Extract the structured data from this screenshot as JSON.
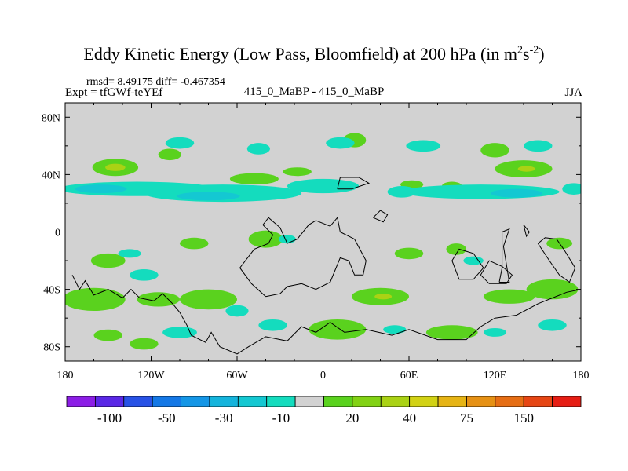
{
  "title": {
    "main": "Eddy Kinetic Energy (Low Pass, Bloomfield) at 200 hPa (in m",
    "sup1": "2",
    "mid": "s",
    "sup2": "-2",
    "end": ")"
  },
  "stats": "rmsd= 8.49175 diff= -0.467354",
  "expt": "Expt = tfGWf-teYEf",
  "diff_label": "415_0_MaBP - 415_0_MaBP",
  "season": "JJA",
  "chart_data": {
    "type": "heatmap",
    "title": "Eddy Kinetic Energy (Low Pass, Bloomfield) at 200 hPa (in m2s-2)",
    "projection": "cylindrical equidistant",
    "xlim": [
      -180,
      180
    ],
    "ylim": [
      -90,
      90
    ],
    "x_ticks": [
      {
        "value": -180,
        "label": "180"
      },
      {
        "value": -120,
        "label": "120W"
      },
      {
        "value": -60,
        "label": "60W"
      },
      {
        "value": 0,
        "label": "0"
      },
      {
        "value": 60,
        "label": "60E"
      },
      {
        "value": 120,
        "label": "120E"
      },
      {
        "value": 180,
        "label": "180"
      }
    ],
    "y_ticks": [
      {
        "value": 80,
        "label": "80N"
      },
      {
        "value": 40,
        "label": "40N"
      },
      {
        "value": 0,
        "label": "0"
      },
      {
        "value": -40,
        "label": "40S"
      },
      {
        "value": -80,
        "label": "80S"
      }
    ],
    "colorbar": {
      "colors": [
        "#8c1ee6",
        "#5a28e6",
        "#2852e6",
        "#1478e6",
        "#1496e6",
        "#14b4dc",
        "#14c8d2",
        "#14dcbe",
        "#d2d2d2",
        "#5ad21e",
        "#82d214",
        "#aad214",
        "#d2d214",
        "#e6b414",
        "#e69114",
        "#e66e14",
        "#e64614",
        "#e61e14"
      ],
      "labels": [
        {
          "text": "-100",
          "boundary": 1.5
        },
        {
          "text": "-50",
          "boundary": 3.5
        },
        {
          "text": "-30",
          "boundary": 5.5
        },
        {
          "text": "-10",
          "boundary": 7.5
        },
        {
          "text": "20",
          "boundary": 10
        },
        {
          "text": "40",
          "boundary": 12
        },
        {
          "text": "75",
          "boundary": 14
        },
        {
          "text": "150",
          "boundary": 16
        }
      ]
    },
    "anomaly_regions": [
      {
        "color_index": 9,
        "lon": -145,
        "lat": 45,
        "dlon": 16,
        "dlat": 6
      },
      {
        "color_index": 11,
        "lon": -145,
        "lat": 45,
        "dlon": 7,
        "dlat": 2.5
      },
      {
        "color_index": 9,
        "lon": -107,
        "lat": 54,
        "dlon": 8,
        "dlat": 4
      },
      {
        "color_index": 9,
        "lon": -48,
        "lat": 37,
        "dlon": 17,
        "dlat": 4
      },
      {
        "color_index": 9,
        "lon": -18,
        "lat": 42,
        "dlon": 10,
        "dlat": 3
      },
      {
        "color_index": 9,
        "lon": 62,
        "lat": 33,
        "dlon": 8,
        "dlat": 3
      },
      {
        "color_index": 9,
        "lon": 90,
        "lat": 32,
        "dlon": 7,
        "dlat": 3
      },
      {
        "color_index": 9,
        "lon": 140,
        "lat": 44,
        "dlon": 20,
        "dlat": 6
      },
      {
        "color_index": 11,
        "lon": 142,
        "lat": 44,
        "dlon": 6,
        "dlat": 2
      },
      {
        "color_index": 9,
        "lon": 22,
        "lat": 64,
        "dlon": 8,
        "dlat": 5
      },
      {
        "color_index": 9,
        "lon": 120,
        "lat": 57,
        "dlon": 10,
        "dlat": 5
      },
      {
        "color_index": 9,
        "lon": -40,
        "lat": -5,
        "dlon": 12,
        "dlat": 6
      },
      {
        "color_index": 9,
        "lon": -150,
        "lat": -20,
        "dlon": 12,
        "dlat": 5
      },
      {
        "color_index": 9,
        "lon": -90,
        "lat": -8,
        "dlon": 10,
        "dlat": 4
      },
      {
        "color_index": 9,
        "lon": 60,
        "lat": -15,
        "dlon": 10,
        "dlat": 4
      },
      {
        "color_index": 9,
        "lon": 93,
        "lat": -12,
        "dlon": 7,
        "dlat": 4
      },
      {
        "color_index": 9,
        "lon": 165,
        "lat": -8,
        "dlon": 9,
        "dlat": 4
      },
      {
        "color_index": 9,
        "lon": -160,
        "lat": -47,
        "dlon": 22,
        "dlat": 8
      },
      {
        "color_index": 9,
        "lon": -80,
        "lat": -47,
        "dlon": 20,
        "dlat": 7
      },
      {
        "color_index": 11,
        "lon": -115,
        "lat": -47,
        "dlon": 7,
        "dlat": 2
      },
      {
        "color_index": 9,
        "lon": -115,
        "lat": -47,
        "dlon": 15,
        "dlat": 5
      },
      {
        "color_index": 9,
        "lon": 40,
        "lat": -45,
        "dlon": 20,
        "dlat": 6
      },
      {
        "color_index": 11,
        "lon": 42,
        "lat": -45,
        "dlon": 6,
        "dlat": 2
      },
      {
        "color_index": 9,
        "lon": 130,
        "lat": -45,
        "dlon": 18,
        "dlat": 5
      },
      {
        "color_index": 9,
        "lon": 160,
        "lat": -40,
        "dlon": 18,
        "dlat": 7
      },
      {
        "color_index": 9,
        "lon": 10,
        "lat": -68,
        "dlon": 20,
        "dlat": 7
      },
      {
        "color_index": 9,
        "lon": 90,
        "lat": -70,
        "dlon": 18,
        "dlat": 5
      },
      {
        "color_index": 9,
        "lon": -125,
        "lat": -78,
        "dlon": 10,
        "dlat": 4
      },
      {
        "color_index": 9,
        "lon": -150,
        "lat": -72,
        "dlon": 10,
        "dlat": 4
      },
      {
        "color_index": 7,
        "lon": -100,
        "lat": 62,
        "dlon": 10,
        "dlat": 4
      },
      {
        "color_index": 7,
        "lon": -45,
        "lat": 58,
        "dlon": 8,
        "dlat": 4
      },
      {
        "color_index": 7,
        "lon": 12,
        "lat": 62,
        "dlon": 10,
        "dlat": 4
      },
      {
        "color_index": 7,
        "lon": 70,
        "lat": 60,
        "dlon": 12,
        "dlat": 4
      },
      {
        "color_index": 7,
        "lon": 150,
        "lat": 60,
        "dlon": 10,
        "dlat": 4
      },
      {
        "color_index": 7,
        "lon": -130,
        "lat": 30,
        "dlon": 55,
        "dlat": 5
      },
      {
        "color_index": 7,
        "lon": -70,
        "lat": 27,
        "dlon": 55,
        "dlat": 6
      },
      {
        "color_index": 7,
        "lon": 0,
        "lat": 32,
        "dlon": 25,
        "dlat": 5
      },
      {
        "color_index": 7,
        "lon": 110,
        "lat": 28,
        "dlon": 55,
        "dlat": 5
      },
      {
        "color_index": 7,
        "lon": 175,
        "lat": 30,
        "dlon": 8,
        "dlat": 4
      },
      {
        "color_index": 6,
        "lon": -155,
        "lat": 30,
        "dlon": 18,
        "dlat": 3
      },
      {
        "color_index": 6,
        "lon": -80,
        "lat": 25,
        "dlon": 22,
        "dlat": 3
      },
      {
        "color_index": 6,
        "lon": 135,
        "lat": 27,
        "dlon": 18,
        "dlat": 3
      },
      {
        "color_index": 7,
        "lon": 55,
        "lat": 28,
        "dlon": 10,
        "dlat": 4
      },
      {
        "color_index": 7,
        "lon": -125,
        "lat": -30,
        "dlon": 10,
        "dlat": 4
      },
      {
        "color_index": 7,
        "lon": -60,
        "lat": -55,
        "dlon": 8,
        "dlat": 4
      },
      {
        "color_index": 7,
        "lon": -100,
        "lat": -70,
        "dlon": 12,
        "dlat": 4
      },
      {
        "color_index": 7,
        "lon": -35,
        "lat": -65,
        "dlon": 10,
        "dlat": 4
      },
      {
        "color_index": 7,
        "lon": 105,
        "lat": -20,
        "dlon": 7,
        "dlat": 3
      },
      {
        "color_index": 7,
        "lon": 120,
        "lat": -70,
        "dlon": 8,
        "dlat": 3
      },
      {
        "color_index": 7,
        "lon": 160,
        "lat": -65,
        "dlon": 10,
        "dlat": 4
      },
      {
        "color_index": 7,
        "lon": 50,
        "lat": -68,
        "dlon": 8,
        "dlat": 3
      },
      {
        "color_index": 7,
        "lon": -25,
        "lat": -5,
        "dlon": 6,
        "dlat": 3
      },
      {
        "color_index": 7,
        "lon": -135,
        "lat": -15,
        "dlon": 8,
        "dlat": 3
      }
    ],
    "coastlines": [
      [
        [
          -175,
          -30
        ],
        [
          -170,
          -40
        ],
        [
          -166,
          -34
        ],
        [
          -160,
          -44
        ],
        [
          -150,
          -40
        ],
        [
          -140,
          -46
        ],
        [
          -134,
          -40
        ],
        [
          -128,
          -46
        ],
        [
          -118,
          -48
        ],
        [
          -112,
          -43
        ],
        [
          -105,
          -50
        ],
        [
          -100,
          -56
        ],
        [
          -95,
          -65
        ],
        [
          -92,
          -72
        ],
        [
          -82,
          -77
        ],
        [
          -78,
          -70
        ],
        [
          -72,
          -80
        ],
        [
          -60,
          -85
        ],
        [
          -52,
          -80
        ],
        [
          -40,
          -73
        ],
        [
          -25,
          -76
        ],
        [
          -15,
          -66
        ],
        [
          -5,
          -70
        ],
        [
          5,
          -63
        ],
        [
          15,
          -70
        ],
        [
          30,
          -68
        ],
        [
          48,
          -72
        ],
        [
          60,
          -68
        ],
        [
          80,
          -75
        ],
        [
          100,
          -75
        ],
        [
          110,
          -66
        ],
        [
          120,
          -60
        ],
        [
          135,
          -58
        ],
        [
          150,
          -50
        ],
        [
          160,
          -46
        ],
        [
          170,
          -42
        ],
        [
          180,
          -40
        ]
      ],
      [
        [
          -40,
          -45
        ],
        [
          -50,
          -36
        ],
        [
          -58,
          -25
        ],
        [
          -48,
          -12
        ],
        [
          -38,
          -8
        ],
        [
          -35,
          -2
        ],
        [
          -42,
          5
        ],
        [
          -38,
          10
        ],
        [
          -30,
          3
        ],
        [
          -25,
          -8
        ],
        [
          -18,
          -5
        ],
        [
          -10,
          5
        ],
        [
          -5,
          8
        ],
        [
          5,
          4
        ],
        [
          10,
          10
        ],
        [
          12,
          0
        ],
        [
          22,
          -5
        ],
        [
          30,
          -20
        ],
        [
          28,
          -30
        ],
        [
          22,
          -30
        ],
        [
          18,
          -20
        ],
        [
          12,
          -18
        ],
        [
          5,
          -35
        ],
        [
          -5,
          -40
        ],
        [
          -15,
          -36
        ],
        [
          -25,
          -38
        ],
        [
          -30,
          -43
        ],
        [
          -40,
          -45
        ]
      ],
      [
        [
          10,
          30
        ],
        [
          12,
          38
        ],
        [
          25,
          38
        ],
        [
          32,
          34
        ],
        [
          20,
          30
        ],
        [
          10,
          30
        ]
      ],
      [
        [
          35,
          10
        ],
        [
          40,
          15
        ],
        [
          45,
          12
        ],
        [
          42,
          7
        ],
        [
          35,
          10
        ]
      ],
      [
        [
          90,
          -20
        ],
        [
          95,
          -12
        ],
        [
          105,
          -15
        ],
        [
          112,
          -25
        ],
        [
          105,
          -33
        ],
        [
          95,
          -33
        ],
        [
          90,
          -20
        ]
      ],
      [
        [
          110,
          -30
        ],
        [
          116,
          -20
        ],
        [
          125,
          -24
        ],
        [
          132,
          -30
        ],
        [
          128,
          -36
        ],
        [
          116,
          -36
        ],
        [
          110,
          -30
        ]
      ],
      [
        [
          123,
          -35
        ],
        [
          125,
          -25
        ],
        [
          125,
          0
        ],
        [
          130,
          2
        ],
        [
          126,
          -10
        ],
        [
          130,
          -35
        ],
        [
          123,
          -35
        ]
      ],
      [
        [
          150,
          -8
        ],
        [
          155,
          -4
        ],
        [
          163,
          -5
        ],
        [
          168,
          -12
        ],
        [
          176,
          -25
        ],
        [
          172,
          -35
        ],
        [
          165,
          -30
        ],
        [
          158,
          -20
        ],
        [
          150,
          -8
        ]
      ],
      [
        [
          140,
          5
        ],
        [
          142,
          -3
        ],
        [
          144,
          0
        ],
        [
          140,
          5
        ]
      ]
    ]
  }
}
